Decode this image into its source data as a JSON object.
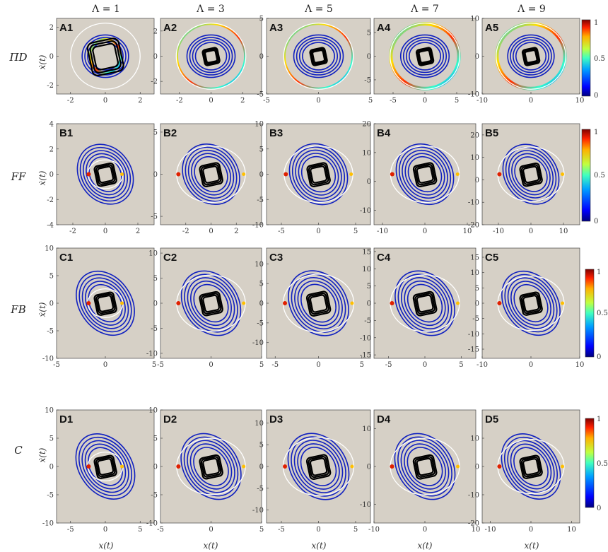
{
  "column_headers": [
    "Λ = 1",
    "Λ = 3",
    "Λ = 5",
    "Λ = 7",
    "Λ = 9"
  ],
  "row_labels": [
    "ΠD",
    "FF",
    "FB",
    "C"
  ],
  "x_axis_label": "x(t)",
  "y_axis_label": "ẋ(t)",
  "colorbar": {
    "ticks": [
      "1",
      "0.5",
      "0"
    ],
    "colors": [
      "#00007f",
      "#0000ff",
      "#00a0ff",
      "#40ffc0",
      "#c0ff40",
      "#ffb000",
      "#ff2000",
      "#7f0000"
    ]
  },
  "colors": {
    "panel_bg": "#d6d0c6",
    "attractor": "#000000",
    "circle": "#ffffff",
    "trajectory": "#1020c0"
  },
  "chart_data": [
    {
      "type": "scatter",
      "label": "A1",
      "xlim": [
        -2.8,
        2.8
      ],
      "ylim": [
        -2.6,
        2.6
      ],
      "xticks": [
        "-2",
        "0",
        "2"
      ],
      "yticks": [
        "2",
        "0",
        "-2"
      ]
    },
    {
      "type": "scatter",
      "label": "A2",
      "xlim": [
        -3.2,
        3.2
      ],
      "ylim": [
        -3.0,
        3.0
      ],
      "xticks": [
        "-2",
        "0",
        "2"
      ],
      "yticks": [
        "2",
        "0",
        "-2"
      ]
    },
    {
      "type": "scatter",
      "label": "A3",
      "xlim": [
        -5,
        5
      ],
      "ylim": [
        -5,
        5
      ],
      "xticks": [
        "-5",
        "0",
        "5"
      ],
      "yticks": [
        "5",
        "0",
        "-5"
      ]
    },
    {
      "type": "scatter",
      "label": "A4",
      "xlim": [
        -8,
        8
      ],
      "ylim": [
        -8,
        8
      ],
      "xticks": [
        "-5",
        "0",
        "5"
      ],
      "yticks": [
        "5",
        "0",
        "-5"
      ]
    },
    {
      "type": "scatter",
      "label": "A5",
      "xlim": [
        -10,
        10
      ],
      "ylim": [
        -10,
        10
      ],
      "xticks": [
        "-10",
        "0",
        "10"
      ],
      "yticks": [
        "10",
        "0",
        "-10"
      ]
    },
    {
      "type": "scatter",
      "label": "B1",
      "xlim": [
        -3,
        3
      ],
      "ylim": [
        -4,
        4
      ],
      "xticks": [
        "-2",
        "0",
        "2"
      ],
      "yticks": [
        "4",
        "2",
        "0",
        "-2",
        "-4"
      ]
    },
    {
      "type": "scatter",
      "label": "B2",
      "xlim": [
        -4,
        4
      ],
      "ylim": [
        -6,
        6
      ],
      "xticks": [
        "-2",
        "0",
        "2"
      ],
      "yticks": [
        "5",
        "0",
        "-5"
      ]
    },
    {
      "type": "scatter",
      "label": "B3",
      "xlim": [
        -7,
        7
      ],
      "ylim": [
        -10,
        10
      ],
      "xticks": [
        "-5",
        "0",
        "5"
      ],
      "yticks": [
        "10",
        "5",
        "0",
        "-5",
        "-10"
      ]
    },
    {
      "type": "scatter",
      "label": "B4",
      "xlim": [
        -12,
        12
      ],
      "ylim": [
        -15,
        20
      ],
      "xticks": [
        "-10",
        "0",
        "10"
      ],
      "yticks": [
        "20",
        "10",
        "0",
        "-10"
      ]
    },
    {
      "type": "scatter",
      "label": "B5",
      "xlim": [
        -15,
        15
      ],
      "ylim": [
        -20,
        25
      ],
      "xticks": [
        "-10",
        "0",
        "10"
      ],
      "yticks": [
        "20",
        "10",
        "0",
        "-10",
        "-20"
      ]
    },
    {
      "type": "scatter",
      "label": "C1",
      "xlim": [
        -5,
        5
      ],
      "ylim": [
        -10,
        10
      ],
      "xticks": [
        "-5",
        "0",
        "5"
      ],
      "yticks": [
        "10",
        "5",
        "0",
        "-5",
        "-10"
      ]
    },
    {
      "type": "scatter",
      "label": "C2",
      "xlim": [
        -5,
        5
      ],
      "ylim": [
        -11,
        11
      ],
      "xticks": [
        "-5",
        "0",
        "5"
      ],
      "yticks": [
        "10",
        "5",
        "0",
        "-5",
        "-10"
      ]
    },
    {
      "type": "scatter",
      "label": "C3",
      "xlim": [
        -6,
        6
      ],
      "ylim": [
        -14,
        14
      ],
      "xticks": [
        "-5",
        "0",
        "5"
      ],
      "yticks": [
        "10",
        "5",
        "0",
        "-5",
        "-10"
      ]
    },
    {
      "type": "scatter",
      "label": "C4",
      "xlim": [
        -7,
        7
      ],
      "ylim": [
        -16,
        16
      ],
      "xticks": [
        "-5",
        "0",
        "5"
      ],
      "yticks": [
        "15",
        "10",
        "5",
        "0",
        "-5",
        "-10",
        "-15"
      ]
    },
    {
      "type": "scatter",
      "label": "C5",
      "xlim": [
        -10,
        10
      ],
      "ylim": [
        -18,
        18
      ],
      "xticks": [
        "-10",
        "0",
        "10"
      ],
      "yticks": [
        "15",
        "10",
        "5",
        "0",
        "-5",
        "-10",
        "-15"
      ]
    },
    {
      "type": "scatter",
      "label": "D1",
      "xlim": [
        -7,
        7
      ],
      "ylim": [
        -10,
        10
      ],
      "xticks": [
        "-5",
        "0",
        "5"
      ],
      "yticks": [
        "10",
        "5",
        "0",
        "-5",
        "-10"
      ]
    },
    {
      "type": "scatter",
      "label": "D2",
      "xlim": [
        -5,
        5
      ],
      "ylim": [
        -10,
        10
      ],
      "xticks": [
        "-5",
        "0",
        "5"
      ],
      "yticks": [
        "10",
        "5",
        "0",
        "-5",
        "-10"
      ]
    },
    {
      "type": "scatter",
      "label": "D3",
      "xlim": [
        -7,
        7
      ],
      "ylim": [
        -13,
        13
      ],
      "xticks": [
        "-5",
        "0",
        "5"
      ],
      "yticks": [
        "10",
        "5",
        "0",
        "-5",
        "-10"
      ]
    },
    {
      "type": "scatter",
      "label": "D4",
      "xlim": [
        -10,
        10
      ],
      "ylim": [
        -15,
        15
      ],
      "xticks": [
        "-10",
        "0",
        "10"
      ],
      "yticks": [
        "10",
        "0",
        "-10"
      ]
    },
    {
      "type": "scatter",
      "label": "D5",
      "xlim": [
        -12,
        12
      ],
      "ylim": [
        -20,
        20
      ],
      "xticks": [
        "-10",
        "0",
        "10"
      ],
      "yticks": [
        "10",
        "0",
        "-10",
        "-20"
      ]
    }
  ]
}
